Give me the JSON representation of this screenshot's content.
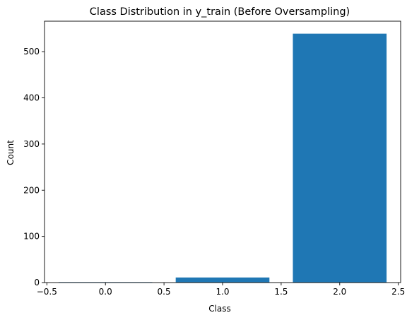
{
  "chart_data": {
    "type": "bar",
    "title": "Class Distribution in y_train (Before Oversampling)",
    "xlabel": "Class",
    "ylabel": "Count",
    "x": [
      0,
      1,
      2
    ],
    "values": [
      1,
      11,
      539
    ],
    "bar_width": 0.8,
    "xlim": [
      -0.52,
      2.52
    ],
    "ylim": [
      0,
      566
    ],
    "xticks": [
      -0.5,
      0.0,
      0.5,
      1.0,
      1.5,
      2.0,
      2.5
    ],
    "xtick_labels": [
      "−0.5",
      "0.0",
      "0.5",
      "1.0",
      "1.5",
      "2.0",
      "2.5"
    ],
    "yticks": [
      0,
      100,
      200,
      300,
      400,
      500
    ],
    "ytick_labels": [
      "0",
      "100",
      "200",
      "300",
      "400",
      "500"
    ],
    "grid": false,
    "legend": "none",
    "bar_color": "#1f77b4"
  }
}
